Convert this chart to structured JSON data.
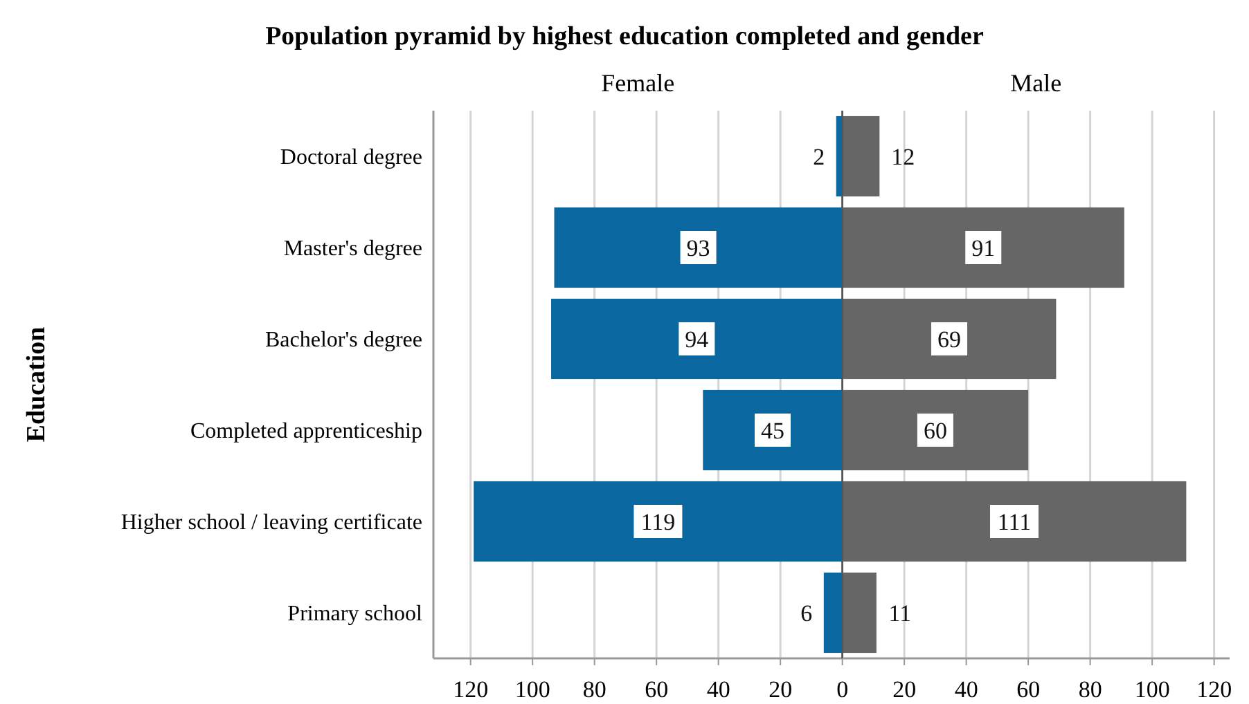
{
  "chart_data": [
    {
      "type": "bar",
      "orientation": "horizontal",
      "title": "Population pyramid by highest education completed and gender",
      "ylabel": "Education",
      "categories": [
        "Doctoral degree",
        "Master's degree",
        "Bachelor's degree",
        "Completed apprenticeship",
        "Higher school / leaving certificate",
        "Primary school"
      ],
      "series": [
        {
          "name": "Female",
          "color": "#0b67a0",
          "values": [
            2,
            93,
            94,
            45,
            119,
            6
          ]
        }
      ],
      "xlim": [
        132,
        0
      ],
      "xticks": [
        120,
        100,
        80,
        60,
        40,
        20,
        0
      ],
      "grid": "x",
      "data_labels": true
    },
    {
      "type": "bar",
      "orientation": "horizontal",
      "series": [
        {
          "name": "Male",
          "color": "#666666",
          "values": [
            12,
            91,
            69,
            60,
            111,
            11
          ]
        }
      ],
      "xlim": [
        0,
        125
      ],
      "xticks": [
        20,
        40,
        60,
        80,
        100,
        120
      ],
      "grid": "x",
      "data_labels": true,
      "tick_labels": "x"
    }
  ]
}
